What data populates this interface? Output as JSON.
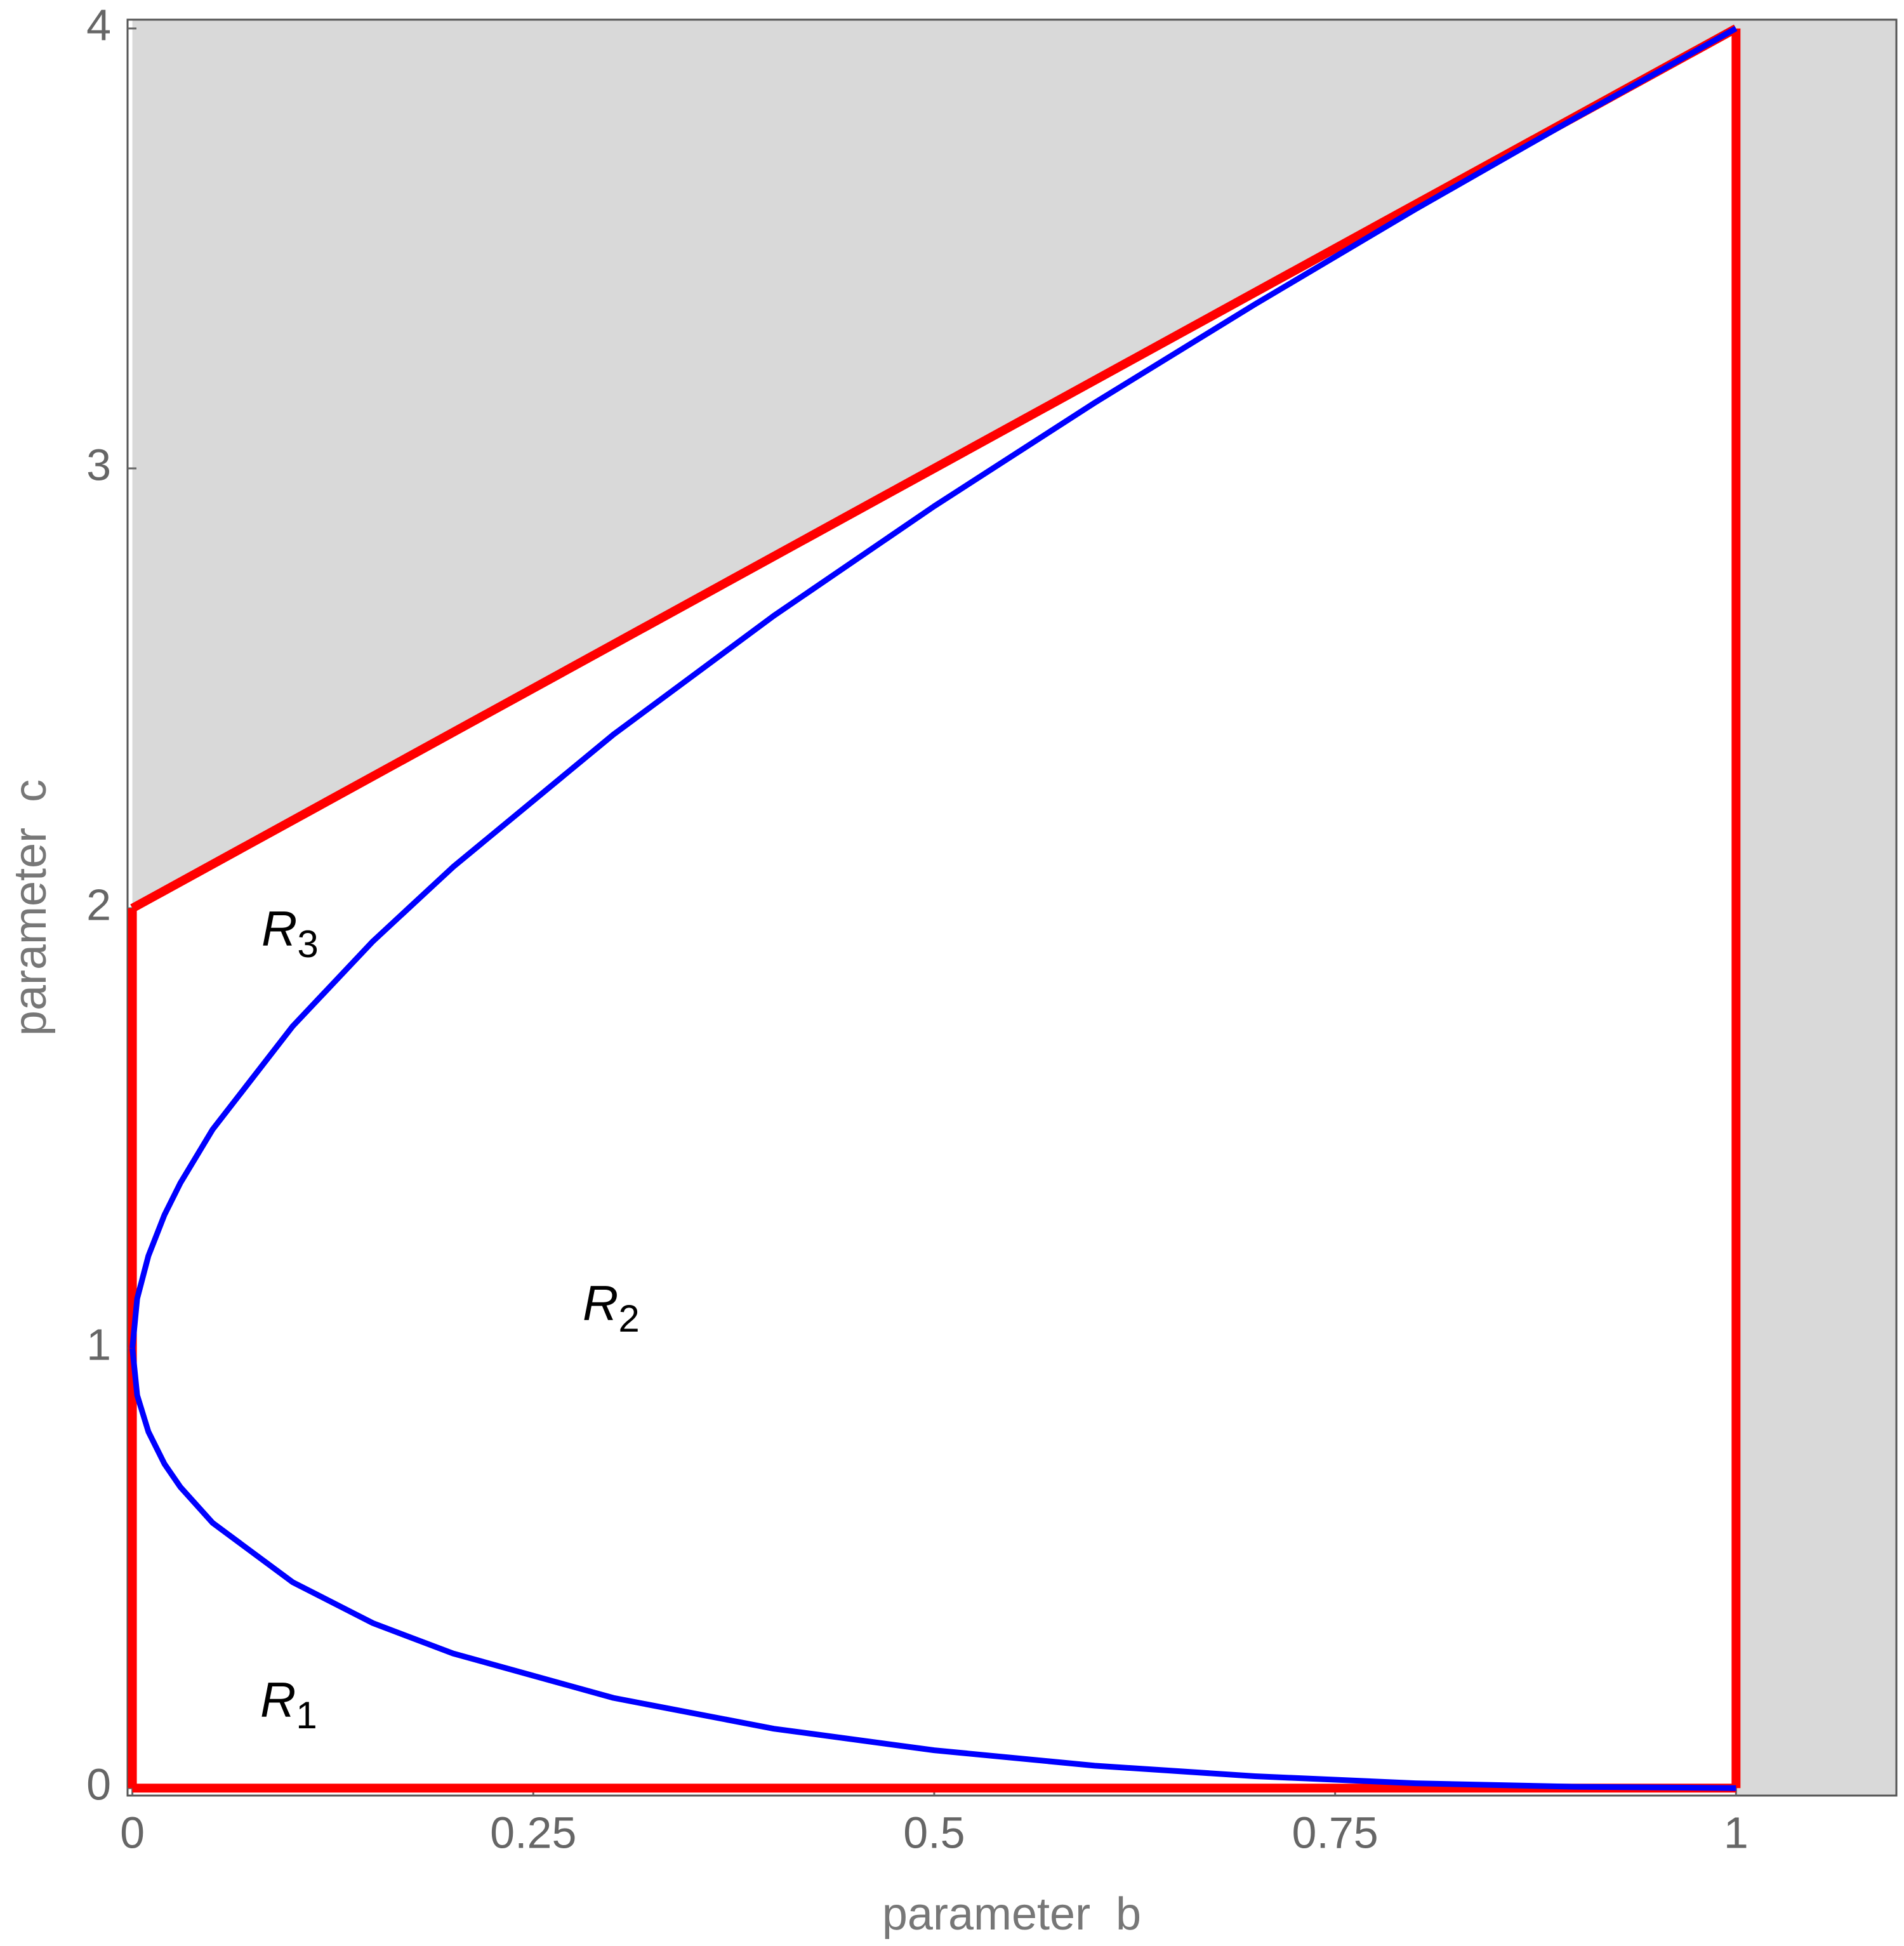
{
  "chart_data": {
    "type": "line",
    "xlabel": "parameter  b",
    "ylabel": "parameter  c",
    "xlim": [
      -0.003,
      1.1
    ],
    "ylim": [
      -0.017,
      4.02
    ],
    "xticks": [
      0,
      0.25,
      0.5,
      0.75,
      1
    ],
    "yticks": [
      0,
      1,
      2,
      3,
      4
    ],
    "shade_color": "#d9d9d9",
    "series": [
      {
        "color": "#ff0000",
        "x": [
          0,
          1
        ],
        "values": [
          2,
          4
        ]
      },
      {
        "color": "#ff0000",
        "x": [
          0,
          0
        ],
        "values": [
          0,
          2
        ]
      },
      {
        "color": "#ff0000",
        "x": [
          1,
          1
        ],
        "values": [
          0,
          4
        ]
      },
      {
        "color": "#ff0000",
        "x": [
          0,
          1
        ],
        "values": [
          0,
          0
        ]
      },
      {
        "color": "#0000ff",
        "x": [
          0,
          0.003,
          0.01,
          0.02,
          0.03,
          0.05,
          0.1,
          0.15,
          0.2,
          0.3,
          0.4,
          0.5,
          0.6,
          0.7,
          0.8,
          0.9,
          1
        ],
        "values": [
          1,
          1.113,
          1.21,
          1.303,
          1.376,
          1.497,
          1.732,
          1.925,
          2.094,
          2.395,
          2.665,
          2.914,
          3.149,
          3.373,
          3.589,
          3.797,
          4
        ]
      },
      {
        "color": "#0000ff",
        "x": [
          0,
          0.003,
          0.01,
          0.02,
          0.03,
          0.05,
          0.1,
          0.15,
          0.2,
          0.3,
          0.4,
          0.5,
          0.6,
          0.7,
          0.8,
          0.9,
          1
        ],
        "values": [
          1,
          0.893,
          0.81,
          0.737,
          0.684,
          0.603,
          0.468,
          0.375,
          0.306,
          0.205,
          0.135,
          0.086,
          0.051,
          0.027,
          0.011,
          0.003,
          0
        ]
      }
    ],
    "annotations": [
      {
        "text": "R",
        "sub": "3"
      },
      {
        "text": "R",
        "sub": "2"
      },
      {
        "text": "R",
        "sub": "1"
      }
    ]
  }
}
